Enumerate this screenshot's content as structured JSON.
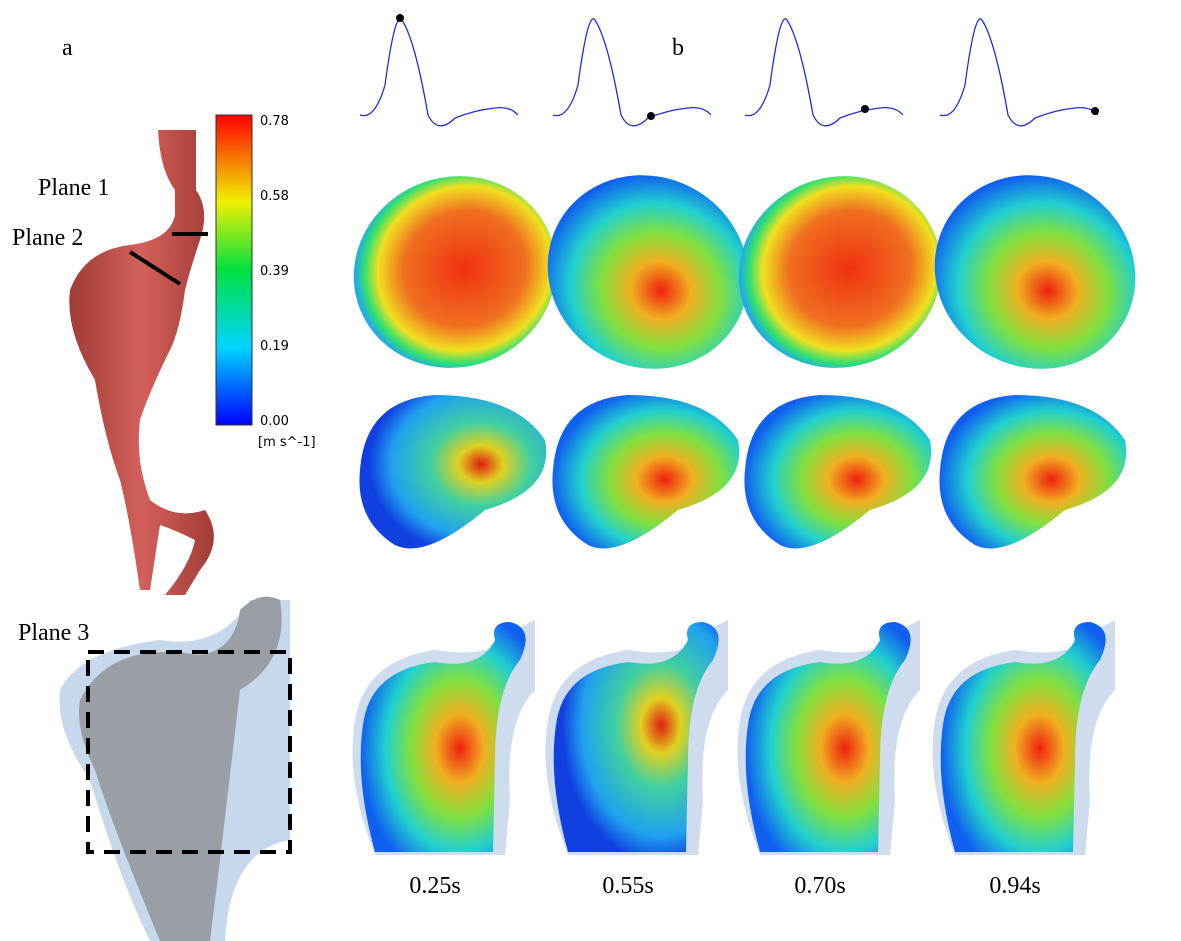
{
  "panel_a": {
    "label": "a",
    "planes": [
      "Plane 1",
      "Plane 2",
      "Plane 3"
    ]
  },
  "panel_b": {
    "label": "b"
  },
  "colorbar": {
    "ticks": [
      "0.78",
      "0.58",
      "0.39",
      "0.19",
      "0.00"
    ],
    "unit": "[m s^-1]"
  },
  "times": [
    "0.25s",
    "0.55s",
    "0.70s",
    "0.94s"
  ]
}
